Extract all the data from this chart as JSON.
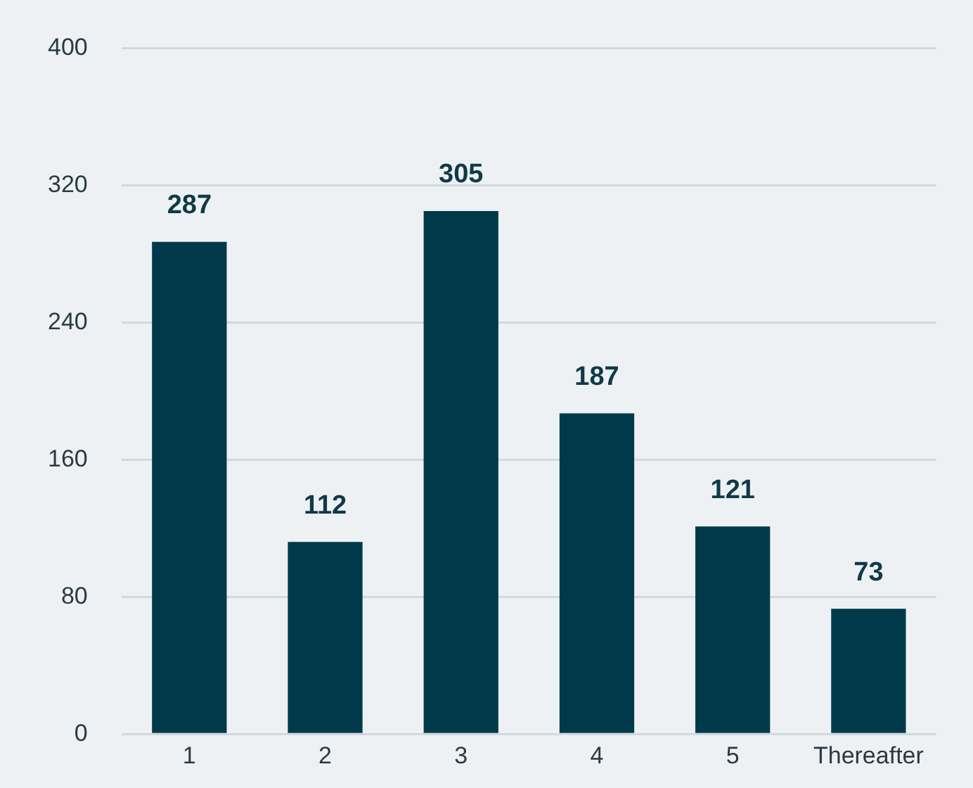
{
  "chart_data": {
    "type": "bar",
    "categories": [
      "1",
      "2",
      "3",
      "4",
      "5",
      "Thereafter"
    ],
    "series": [
      {
        "color": "#003a4a",
        "values": [
          287,
          112,
          305,
          187,
          121,
          73
        ]
      }
    ],
    "ylim": [
      0,
      400
    ],
    "yticks": [
      0,
      80,
      160,
      240,
      320,
      400
    ],
    "grid": "y",
    "data_labels": true,
    "legend": false
  }
}
